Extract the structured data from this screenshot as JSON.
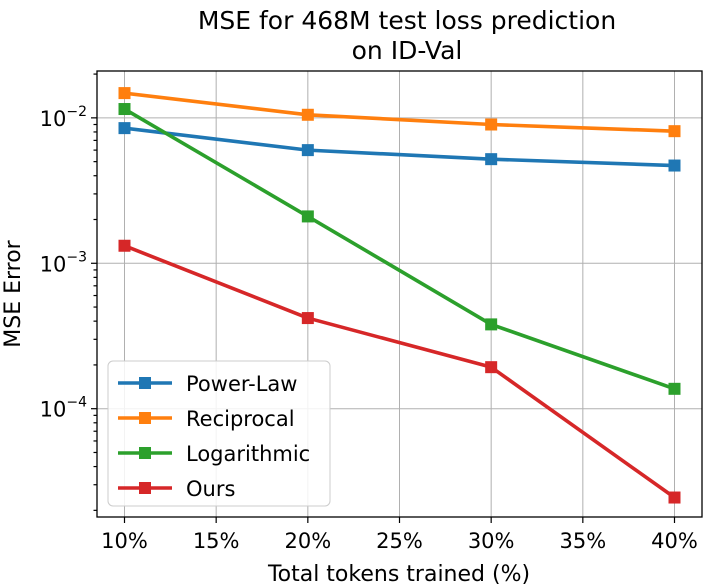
{
  "chart_data": {
    "type": "line",
    "title": "MSE for 468M test loss prediction",
    "subtitle": "on ID-Val",
    "xlabel": "Total tokens trained (%)",
    "ylabel": "MSE Error",
    "yscale": "log",
    "grid": true,
    "legend_position": "lower-left",
    "x": [
      10,
      20,
      30,
      40
    ],
    "xlim": [
      8.5,
      41.5
    ],
    "ylim": [
      1.8e-05,
      0.021
    ],
    "x_ticks": [
      10,
      15,
      20,
      25,
      30,
      35,
      40
    ],
    "x_tick_labels": [
      "10%",
      "15%",
      "20%",
      "25%",
      "30%",
      "35%",
      "40%"
    ],
    "y_major_ticks": [
      {
        "base": "10",
        "exp": "−2",
        "value": 0.01
      },
      {
        "base": "10",
        "exp": "−3",
        "value": 0.001
      },
      {
        "base": "10",
        "exp": "−4",
        "value": 0.0001
      }
    ],
    "series": [
      {
        "name": "Power-Law",
        "color": "#1f77b4",
        "values": [
          0.0085,
          0.006,
          0.0052,
          0.0047
        ]
      },
      {
        "name": "Reciprocal",
        "color": "#ff7f0e",
        "values": [
          0.0148,
          0.0105,
          0.009,
          0.0081
        ]
      },
      {
        "name": "Logarithmic",
        "color": "#2ca02c",
        "values": [
          0.0115,
          0.0021,
          0.00038,
          0.000137
        ]
      },
      {
        "name": "Ours",
        "color": "#d62728",
        "values": [
          0.00132,
          0.00042,
          0.000193,
          2.45e-05
        ]
      }
    ]
  }
}
